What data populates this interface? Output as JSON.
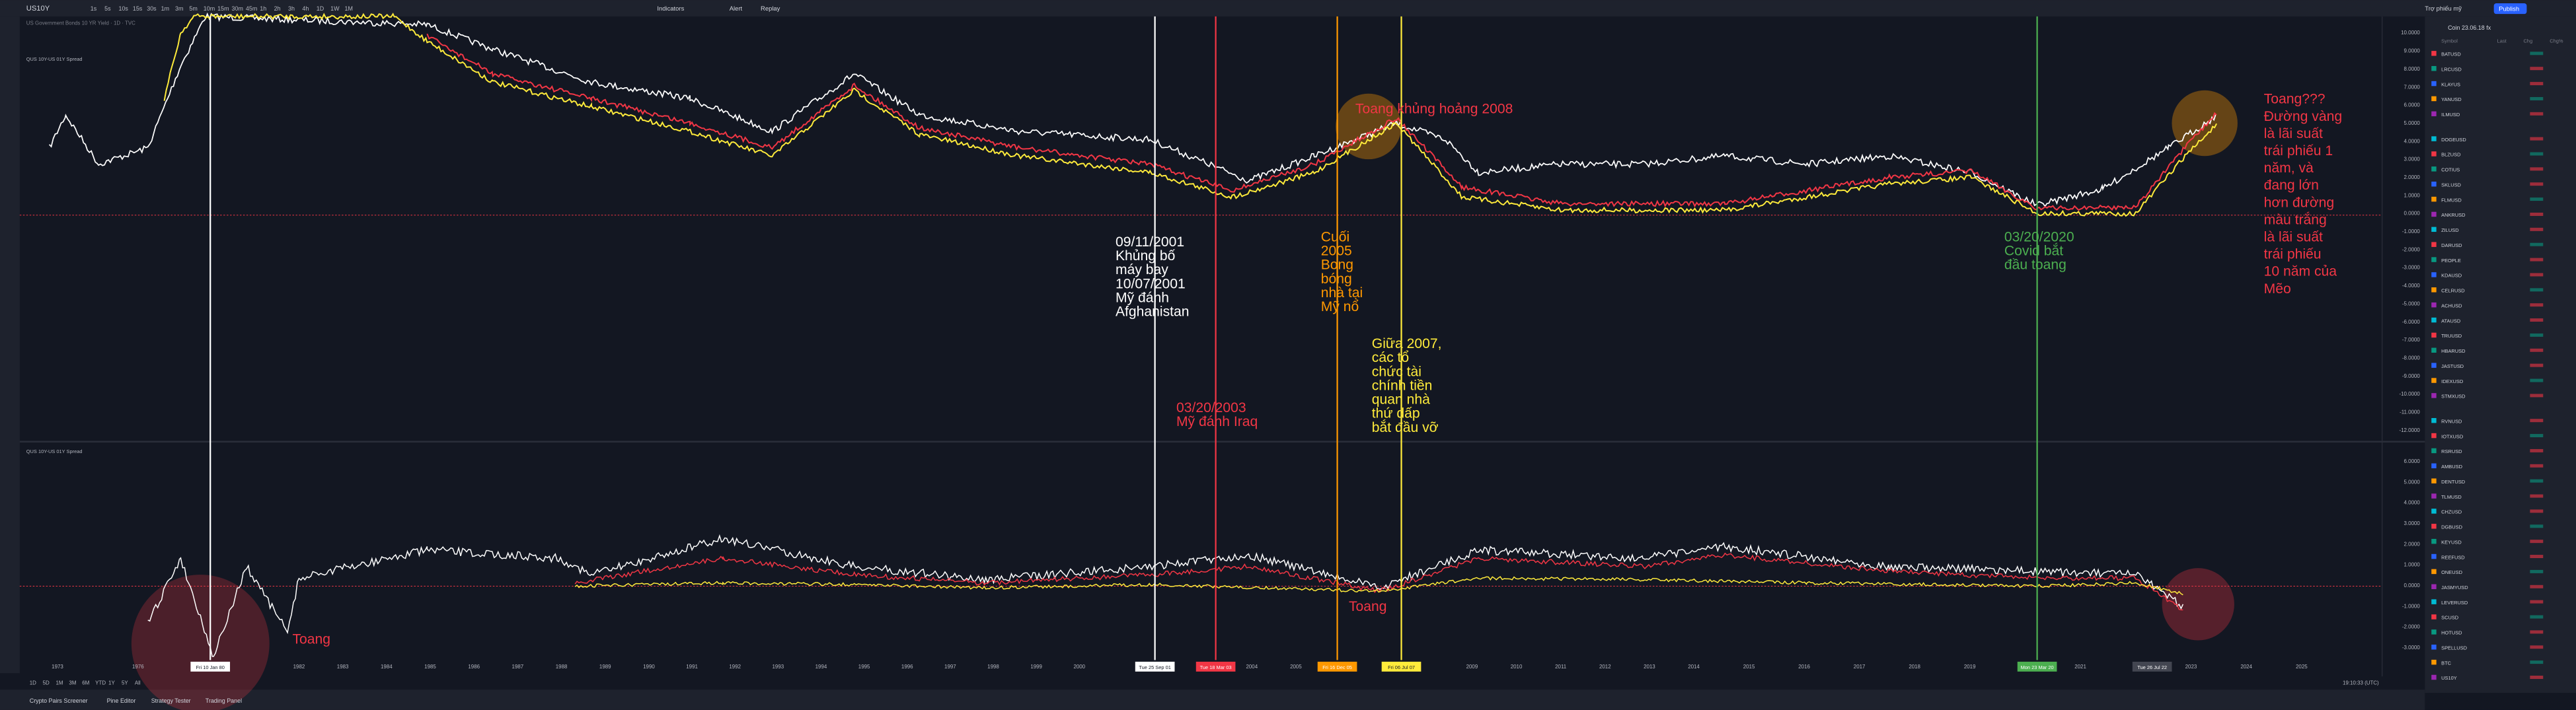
{
  "toolbar": {
    "symbol": "US10Y",
    "intervals": [
      "1s",
      "5s",
      "10s",
      "15s",
      "30s",
      "1m",
      "3m",
      "5m",
      "10m",
      "15m",
      "30m",
      "45m",
      "1h",
      "2h",
      "3h",
      "4h",
      "1D",
      "1W",
      "1M"
    ],
    "indicators": "Indicators",
    "alert": "Alert",
    "replay": "Replay",
    "layout": "Trợ phiếu mỹ",
    "publish": "Publish"
  },
  "legend": {
    "top": "US Government Bonds 10 YR Yield · 1D · TVC",
    "top_study": "QUS 10Y-US 01Y Spread",
    "bottom_study": "QUS 10Y-US 01Y Spread"
  },
  "annotations": [
    {
      "lines": [
        "09/11/2001",
        "Khủng bố",
        "máy bay",
        "10/07/2001",
        "Mỹ đánh",
        "Afghanistan"
      ],
      "color": "#ffffff"
    },
    {
      "lines": [
        "03/20/2003",
        "Mỹ đánh Iraq"
      ],
      "color": "#f23645"
    },
    {
      "lines": [
        "Cuối",
        "2005",
        "Bong",
        "bóng",
        "nhà tại",
        "Mỹ nổ"
      ],
      "color": "#ff9800"
    },
    {
      "lines": [
        "Giữa 2007,",
        "các tổ",
        "chức tài",
        "chính tiền",
        "quan nhà",
        "thứ dấp",
        "bắt đầu vỡ"
      ],
      "color": "#ffeb3b"
    },
    {
      "lines": [
        "Toang  khủng hoảng 2008"
      ],
      "color": "#f23645"
    },
    {
      "lines": [
        "03/20/2020",
        "Covid bắt",
        "đầu toang"
      ],
      "color": "#4caf50"
    },
    {
      "lines": [
        "Toang???",
        "Đường vàng",
        "là lãi suất",
        "trái phiếu 1",
        "năm, và",
        "đang lớn",
        "hơn đường",
        "màu trắng",
        "là lãi suất",
        "trái phiếu",
        "10 năm của",
        "Mẽo"
      ],
      "color": "#f23645"
    },
    {
      "lines": [
        "Toang"
      ],
      "color": "#f23645"
    },
    {
      "lines": [
        "Toang"
      ],
      "color": "#f23645"
    }
  ],
  "price_axis_top": [
    "10.0000",
    "9.0000",
    "8.0000",
    "7.0000",
    "6.0000",
    "5.0000",
    "4.0000",
    "3.0000",
    "2.0000",
    "1.0000",
    "0.0000",
    "-1.0000",
    "-2.0000",
    "-3.0000",
    "-4.0000",
    "-5.0000",
    "-6.0000",
    "-7.0000",
    "-8.0000",
    "-9.0000",
    "-10.0000",
    "-11.0000",
    "-12.0000"
  ],
  "price_axis_bottom": [
    "6.0000",
    "5.0000",
    "4.0000",
    "3.0000",
    "2.0000",
    "1.0000",
    "0.0000",
    "-1.0000",
    "-2.0000",
    "-3.0000"
  ],
  "years": [
    "1973",
    "1976",
    "1979",
    "1982",
    "1983",
    "1984",
    "1985",
    "1986",
    "1987",
    "1988",
    "1989",
    "1990",
    "1991",
    "1992",
    "1993",
    "1994",
    "1995",
    "1996",
    "1997",
    "1998",
    "1999",
    "2000",
    "2004",
    "2005",
    "2009",
    "2010",
    "2011",
    "2012",
    "2013",
    "2014",
    "2015",
    "2016",
    "2017",
    "2018",
    "2019",
    "2021",
    "2023",
    "2024",
    "2025"
  ],
  "date_markers": [
    {
      "label": "Fri 10 Jan 80",
      "color": "#ffffff"
    },
    {
      "label": "Tue 25 Sep 01",
      "color": "#ffffff"
    },
    {
      "label": "Tue 18 Mar 03",
      "color": "#f23645"
    },
    {
      "label": "Fri 16 Dec 05",
      "color": "#ff9800"
    },
    {
      "label": "Fri 06 Jul 07",
      "color": "#ffeb3b"
    },
    {
      "label": "Mon 23 Mar 20",
      "color": "#4caf50"
    },
    {
      "label": "Tue 26 Jul 22",
      "color": "#434651"
    }
  ],
  "range_buttons": [
    "1D",
    "5D",
    "1M",
    "3M",
    "6M",
    "YTD",
    "1Y",
    "5Y",
    "All"
  ],
  "time": "19:10:33 (UTC)",
  "tabs": [
    "Crypto Pairs Screener",
    "Pine Editor",
    "Strategy Tester",
    "Trading Panel"
  ],
  "watchlist": {
    "title": "Coin 23.06.18 fx",
    "columns": [
      "Symbol",
      "Last",
      "Chg",
      "Chg%"
    ],
    "symbols": [
      "BATUSD",
      "LRCUSD",
      "KLAYUS",
      "YANUSD",
      "ILMUSD",
      "DOGEUSD",
      "BLZUSD",
      "COTIUS",
      "SKLUSD",
      "FLMUSD",
      "ANKRUSD",
      "ZILUSD",
      "DARUSD",
      "PEOPLE",
      "KDAUSD",
      "CELRUSD",
      "ACHUSD",
      "ATAUSD",
      "TRUUSD",
      "HBARUSD",
      "JASTUSD",
      "IDEXUSD",
      "STMXUSD",
      "RVNUSD",
      "IOTXUSD",
      "RSRUSD",
      "AMBUSD",
      "DENTUSD",
      "TLMUSD",
      "CHZUSD",
      "DGBUSD",
      "KEYUSD",
      "REEFUSD",
      "ONEUSD",
      "JASMYUSD",
      "LEVERUSD",
      "SCUSD",
      "HOTUSD",
      "SPELLUSD",
      "BTC",
      "US10Y"
    ]
  }
}
